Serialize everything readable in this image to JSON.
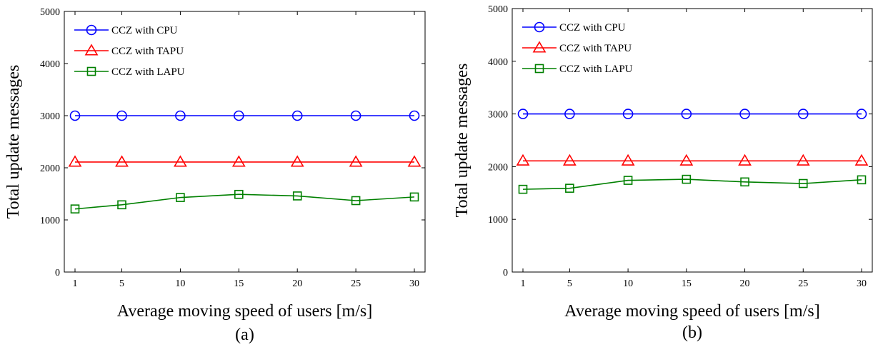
{
  "chart_data": [
    {
      "type": "line",
      "caption": "(a)",
      "xlabel": "Average moving speed of users [m/s]",
      "ylabel": "Total update messages",
      "x": [
        1,
        5,
        10,
        15,
        20,
        25,
        30
      ],
      "xticks": [
        "1",
        "5",
        "10",
        "15",
        "20",
        "25",
        "30"
      ],
      "ylim": [
        0,
        5000
      ],
      "yticks": [
        "0",
        "1000",
        "2000",
        "3000",
        "4000",
        "5000"
      ],
      "grid": false,
      "legend_position": "top-left",
      "series": [
        {
          "name": "CCZ with CPU",
          "color": "#0000ff",
          "marker": "circle",
          "values": [
            3000,
            3000,
            3000,
            3000,
            3000,
            3000,
            3000
          ]
        },
        {
          "name": "CCZ with TAPU",
          "color": "#ff0000",
          "marker": "triangle",
          "values": [
            2110,
            2110,
            2110,
            2110,
            2110,
            2110,
            2110
          ]
        },
        {
          "name": "CCZ with LAPU",
          "color": "#008000",
          "marker": "square",
          "values": [
            1210,
            1290,
            1430,
            1490,
            1460,
            1370,
            1440
          ]
        }
      ]
    },
    {
      "type": "line",
      "caption": "(b)",
      "xlabel": "Average moving speed of users [m/s]",
      "ylabel": "Total update messages",
      "x": [
        1,
        5,
        10,
        15,
        20,
        25,
        30
      ],
      "xticks": [
        "1",
        "5",
        "10",
        "15",
        "20",
        "25",
        "30"
      ],
      "ylim": [
        0,
        5000
      ],
      "yticks": [
        "0",
        "1000",
        "2000",
        "3000",
        "4000",
        "5000"
      ],
      "grid": false,
      "legend_position": "top-left",
      "series": [
        {
          "name": "CCZ with CPU",
          "color": "#0000ff",
          "marker": "circle",
          "values": [
            3000,
            3000,
            3000,
            3000,
            3000,
            3000,
            3000
          ]
        },
        {
          "name": "CCZ with TAPU",
          "color": "#ff0000",
          "marker": "triangle",
          "values": [
            2110,
            2110,
            2110,
            2110,
            2110,
            2110,
            2110
          ]
        },
        {
          "name": "CCZ with LAPU",
          "color": "#008000",
          "marker": "square",
          "values": [
            1570,
            1590,
            1740,
            1760,
            1710,
            1680,
            1750
          ]
        }
      ]
    }
  ]
}
